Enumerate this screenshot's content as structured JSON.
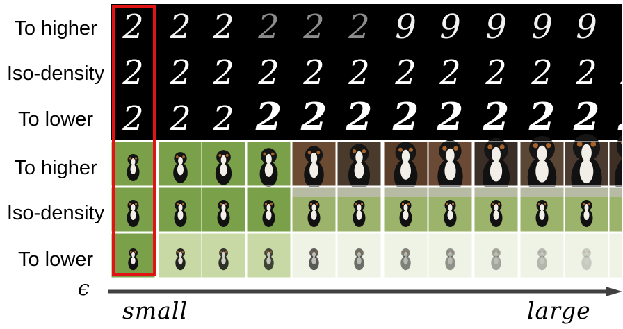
{
  "row_labels": [
    "To higher",
    "Iso-density",
    "To lower",
    "To higher",
    "Iso-density",
    "To lower"
  ],
  "axis": {
    "symbol": "ϵ",
    "start_label": "small",
    "end_label": "large"
  },
  "grid": {
    "columns": 12,
    "rows": [
      {
        "content": "digit",
        "digit_sequence": [
          "2",
          "2",
          "2",
          "2",
          "2",
          "2",
          "9",
          "9",
          "9",
          "9",
          "9",
          "9"
        ]
      },
      {
        "content": "digit",
        "digit_sequence": [
          "2",
          "2",
          "2",
          "2",
          "2",
          "2",
          "2",
          "2",
          "2",
          "2",
          "2",
          "2"
        ]
      },
      {
        "content": "digit",
        "digit_sequence": [
          "2",
          "2",
          "2",
          "2",
          "2",
          "2",
          "2",
          "2",
          "2",
          "2",
          "2",
          "2"
        ]
      },
      {
        "content": "dog",
        "subject": "bernese-mountain-dog",
        "trend": "zoom-in"
      },
      {
        "content": "dog",
        "subject": "bernese-mountain-dog",
        "trend": "iso"
      },
      {
        "content": "dog",
        "subject": "bernese-mountain-dog",
        "trend": "fade"
      }
    ]
  },
  "colors": {
    "highlight": "#e01414",
    "axis": "#404040",
    "grass": "#7aa04a"
  }
}
